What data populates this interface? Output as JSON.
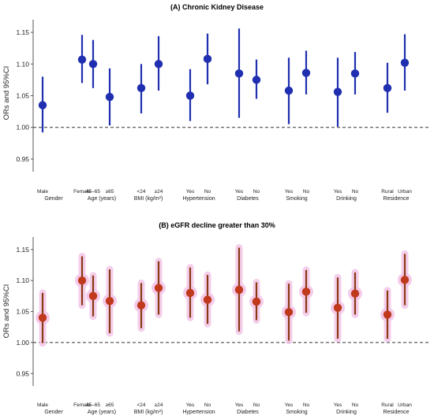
{
  "chart_data": [
    {
      "type": "scatter",
      "title": "(A) Chronic Kidney Disease",
      "ylabel": "ORs and 95%CI",
      "ylim": [
        0.93,
        1.165
      ],
      "yticks": [
        "0.95",
        "1.00",
        "1.05",
        "1.10",
        "1.15"
      ],
      "reference_line": 1.0,
      "color": "#1f2fb0",
      "groups": [
        {
          "label": "Gender",
          "cats": [
            "Male",
            "Female"
          ],
          "or": [
            1.035,
            1.107
          ],
          "lo": [
            0.992,
            1.07
          ],
          "hi": [
            1.08,
            1.146
          ]
        },
        {
          "label": "Age (years)",
          "cats": [
            "45–65",
            "≥65"
          ],
          "or": [
            1.1,
            1.048
          ],
          "lo": [
            1.062,
            1.003
          ],
          "hi": [
            1.138,
            1.093
          ]
        },
        {
          "label": "BMI (kg/m²)",
          "cats": [
            "<24",
            "≥24"
          ],
          "or": [
            1.062,
            1.1
          ],
          "lo": [
            1.022,
            1.058
          ],
          "hi": [
            1.1,
            1.144
          ]
        },
        {
          "label": "Hypertension",
          "cats": [
            "Yes",
            "No"
          ],
          "or": [
            1.05,
            1.108
          ],
          "lo": [
            1.01,
            1.068
          ],
          "hi": [
            1.092,
            1.148
          ]
        },
        {
          "label": "Diabetes",
          "cats": [
            "Yes",
            "No"
          ],
          "or": [
            1.085,
            1.075
          ],
          "lo": [
            1.015,
            1.045
          ],
          "hi": [
            1.156,
            1.107
          ]
        },
        {
          "label": "Smoking",
          "cats": [
            "Yes",
            "No"
          ],
          "or": [
            1.058,
            1.086
          ],
          "lo": [
            1.005,
            1.052
          ],
          "hi": [
            1.11,
            1.121
          ]
        },
        {
          "label": "Drinking",
          "cats": [
            "Yes",
            "No"
          ],
          "or": [
            1.056,
            1.085
          ],
          "lo": [
            1.001,
            1.052
          ],
          "hi": [
            1.11,
            1.119
          ]
        },
        {
          "label": "Residence",
          "cats": [
            "Rural",
            "Urban"
          ],
          "or": [
            1.062,
            1.102
          ],
          "lo": [
            1.023,
            1.058
          ],
          "hi": [
            1.102,
            1.147
          ]
        }
      ]
    },
    {
      "type": "scatter",
      "title": "(B) eGFR decline greater than 30%",
      "ylabel": "ORs and 95%CI",
      "ylim": [
        0.93,
        1.165
      ],
      "yticks": [
        "0.95",
        "1.00",
        "1.05",
        "1.10",
        "1.15"
      ],
      "reference_line": 1.0,
      "color": "#8a3a12",
      "marker_color": "#c0391c",
      "halo_color": "#f3c6e8",
      "groups": [
        {
          "label": "Gender",
          "cats": [
            "Male",
            "Female"
          ],
          "or": [
            1.04,
            1.1
          ],
          "lo": [
            0.999,
            1.06
          ],
          "hi": [
            1.08,
            1.139
          ]
        },
        {
          "label": "Age (years)",
          "cats": [
            "45–65",
            "≥65"
          ],
          "or": [
            1.075,
            1.067
          ],
          "lo": [
            1.042,
            1.015
          ],
          "hi": [
            1.108,
            1.118
          ]
        },
        {
          "label": "BMI (kg/m²)",
          "cats": [
            "<24",
            "≥24"
          ],
          "or": [
            1.06,
            1.088
          ],
          "lo": [
            1.023,
            1.045
          ],
          "hi": [
            1.096,
            1.131
          ]
        },
        {
          "label": "Hypertension",
          "cats": [
            "Yes",
            "No"
          ],
          "or": [
            1.08,
            1.069
          ],
          "lo": [
            1.04,
            1.03
          ],
          "hi": [
            1.121,
            1.109
          ]
        },
        {
          "label": "Diabetes",
          "cats": [
            "Yes",
            "No"
          ],
          "or": [
            1.085,
            1.066
          ],
          "lo": [
            1.018,
            1.036
          ],
          "hi": [
            1.153,
            1.097
          ]
        },
        {
          "label": "Smoking",
          "cats": [
            "Yes",
            "No"
          ],
          "or": [
            1.049,
            1.082
          ],
          "lo": [
            1.003,
            1.048
          ],
          "hi": [
            1.095,
            1.117
          ]
        },
        {
          "label": "Drinking",
          "cats": [
            "Yes",
            "No"
          ],
          "or": [
            1.056,
            1.079
          ],
          "lo": [
            1.006,
            1.045
          ],
          "hi": [
            1.105,
            1.113
          ]
        },
        {
          "label": "Residence",
          "cats": [
            "Rural",
            "Urban"
          ],
          "or": [
            1.045,
            1.101
          ],
          "lo": [
            1.006,
            1.06
          ],
          "hi": [
            1.084,
            1.143
          ]
        }
      ]
    }
  ]
}
